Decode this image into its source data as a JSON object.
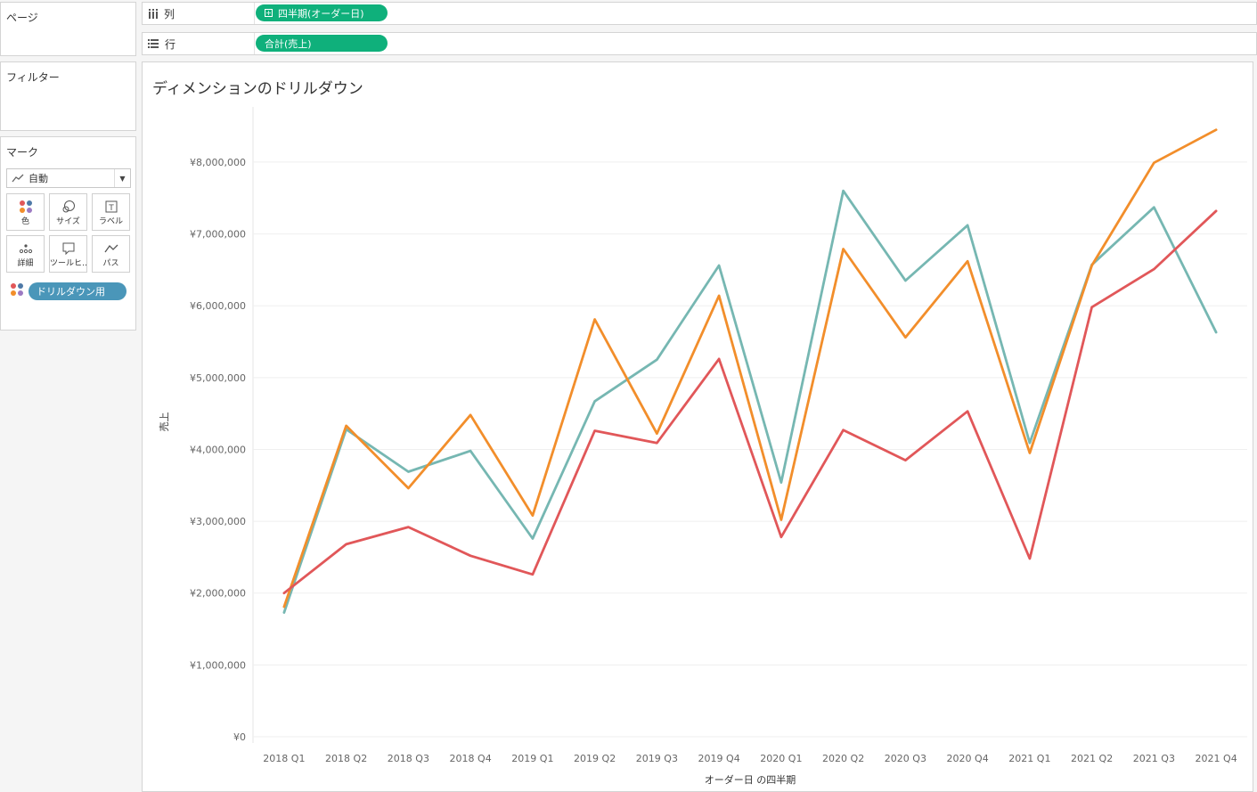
{
  "sidebar": {
    "pages_title": "ページ",
    "filters_title": "フィルター",
    "marks": {
      "title": "マーク",
      "mark_type": "自動",
      "cards": [
        {
          "label": "色",
          "icon": "color-icon"
        },
        {
          "label": "サイズ",
          "icon": "size-icon"
        },
        {
          "label": "ラベル",
          "icon": "label-icon"
        },
        {
          "label": "詳細",
          "icon": "detail-icon"
        },
        {
          "label": "ツールヒ…",
          "icon": "tooltip-icon"
        },
        {
          "label": "パス",
          "icon": "path-icon"
        }
      ],
      "color_pill": "ドリルダウン用"
    }
  },
  "shelves": {
    "columns": {
      "label": "列",
      "pill": "四半期(オーダー日)",
      "pill_color": "#0fb07b"
    },
    "rows": {
      "label": "行",
      "pill": "合計(売上)",
      "pill_color": "#0fb07b"
    }
  },
  "chart_title": "ディメンションのドリルダウン",
  "chart_data": {
    "type": "line",
    "xlabel": "オーダー日 の四半期",
    "ylabel": "売上",
    "ylim": [
      0,
      9000000
    ],
    "y_ticks": [
      0,
      1000000,
      2000000,
      3000000,
      4000000,
      5000000,
      6000000,
      7000000,
      8000000
    ],
    "y_tick_labels": [
      "¥0",
      "¥1,000,000",
      "¥2,000,000",
      "¥3,000,000",
      "¥4,000,000",
      "¥5,000,000",
      "¥6,000,000",
      "¥7,000,000",
      "¥8,000,000"
    ],
    "categories": [
      "2018 Q1",
      "2018 Q2",
      "2018 Q3",
      "2018 Q4",
      "2019 Q1",
      "2019 Q2",
      "2019 Q3",
      "2019 Q4",
      "2020 Q1",
      "2020 Q2",
      "2020 Q3",
      "2020 Q4",
      "2021 Q1",
      "2021 Q2",
      "2021 Q3",
      "2021 Q4"
    ],
    "series": [
      {
        "color": "#76b7b2",
        "values": [
          1730000,
          4280000,
          3690000,
          3980000,
          2760000,
          4670000,
          5250000,
          6560000,
          3540000,
          7600000,
          6350000,
          7120000,
          4090000,
          6570000,
          7370000,
          5630000
        ]
      },
      {
        "color": "#f28e2b",
        "values": [
          1810000,
          4330000,
          3460000,
          4480000,
          3080000,
          5810000,
          4220000,
          6140000,
          3020000,
          6790000,
          5560000,
          6620000,
          3950000,
          6560000,
          7990000,
          8450000
        ]
      },
      {
        "color": "#e15759",
        "values": [
          2000000,
          2680000,
          2920000,
          2520000,
          2260000,
          4260000,
          4090000,
          5260000,
          2780000,
          4270000,
          3850000,
          4530000,
          2480000,
          5980000,
          6510000,
          7320000
        ]
      }
    ]
  }
}
